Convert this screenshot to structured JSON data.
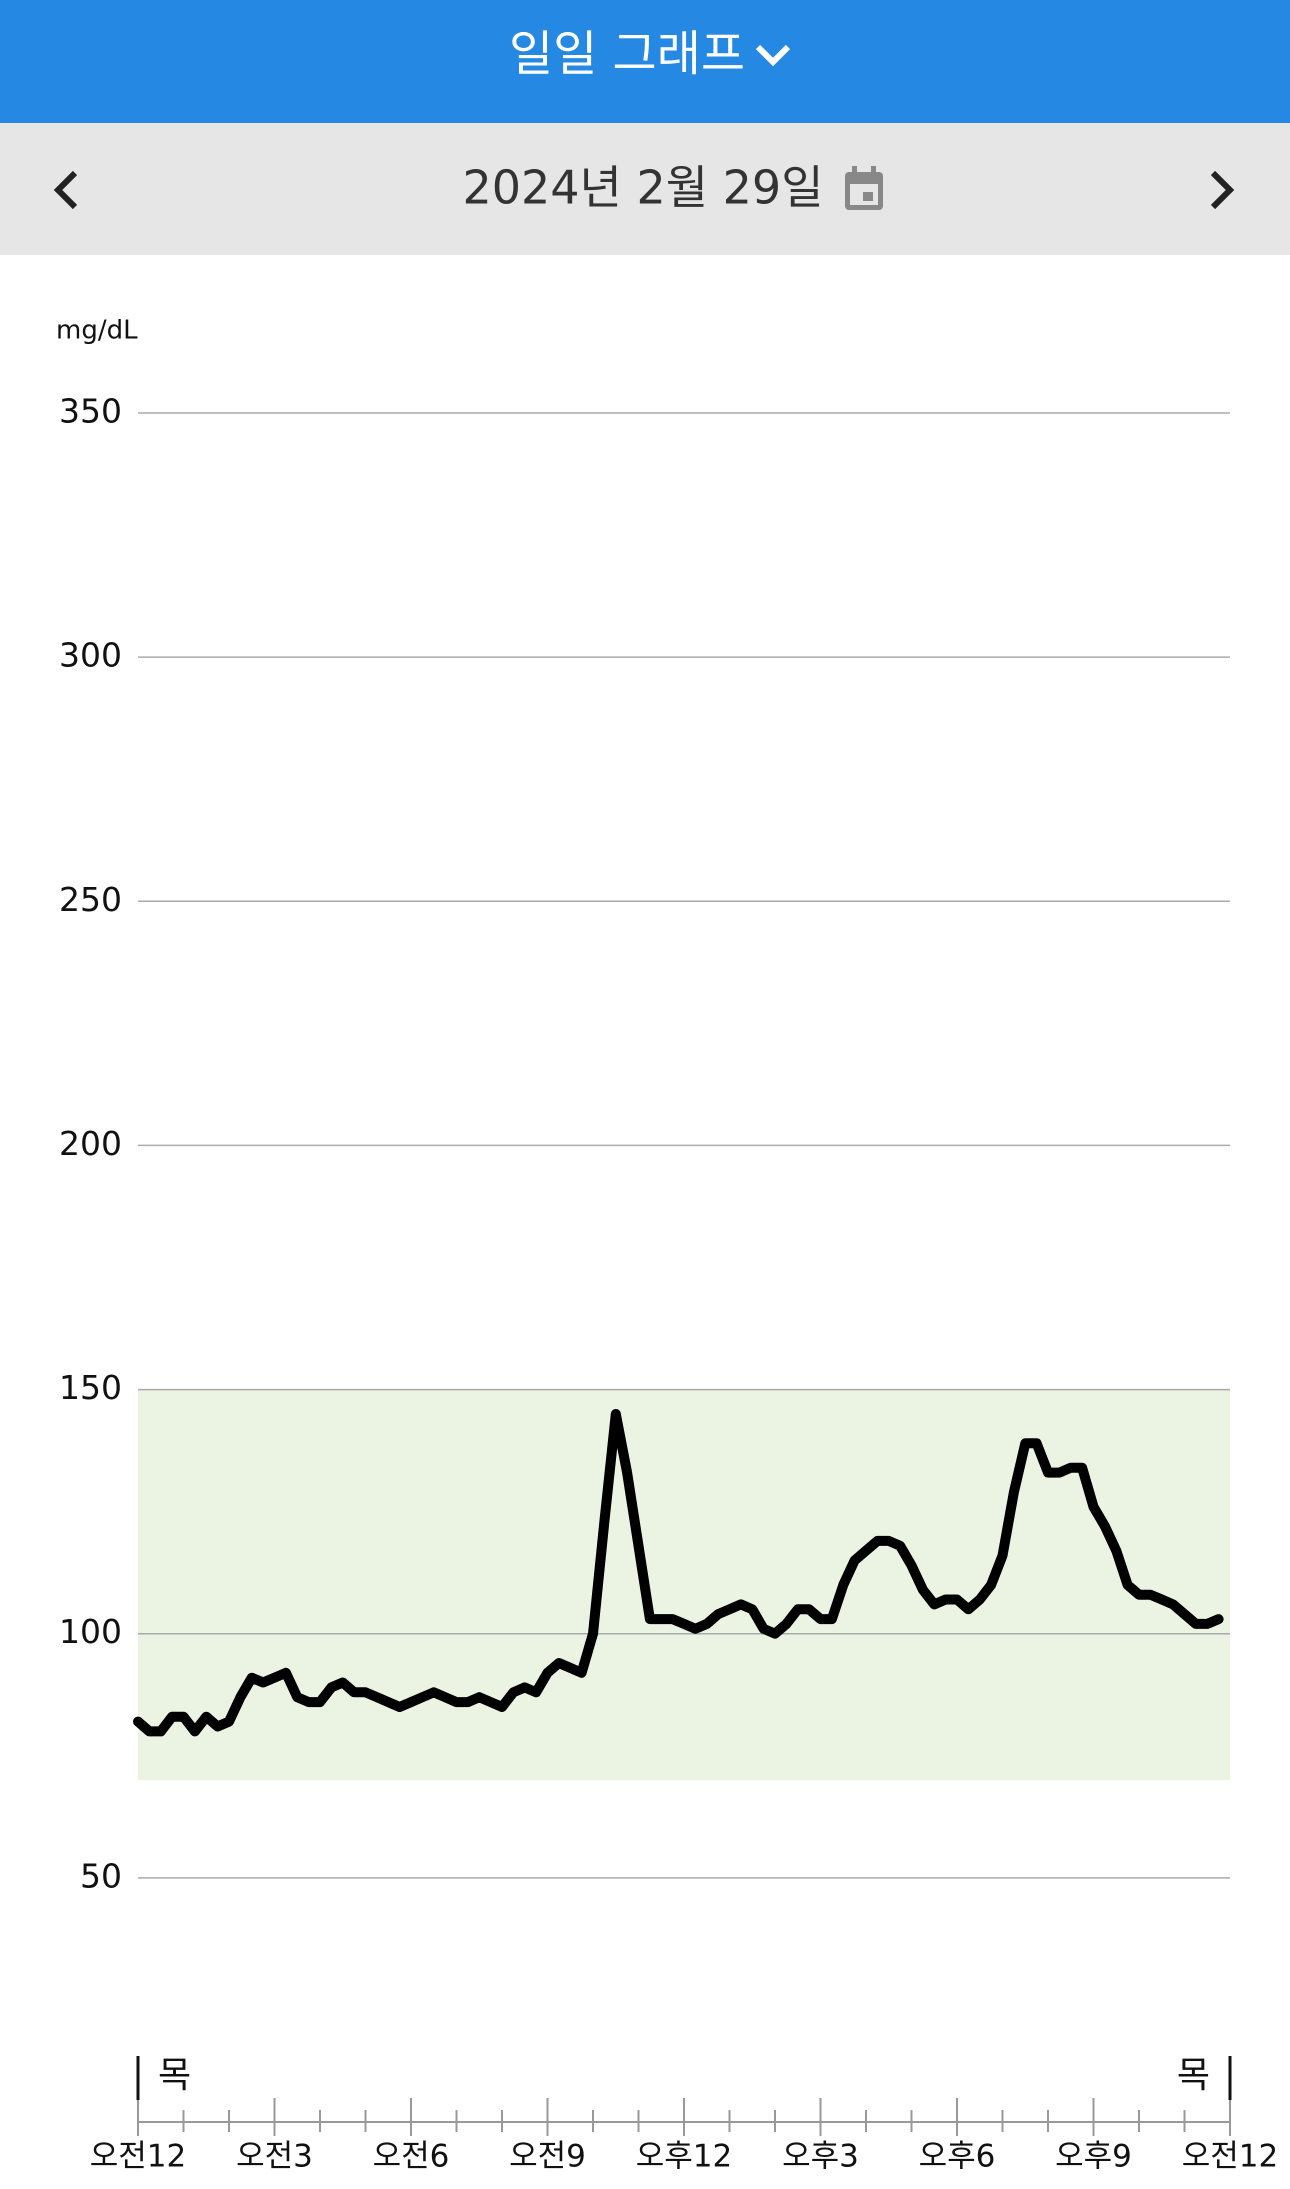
{
  "header": {
    "title": "일일 그래프",
    "date": "2024년 2월 29일"
  },
  "chart_data": {
    "type": "line",
    "y_label": "mg/dL",
    "x": [
      0,
      0.25,
      0.5,
      0.75,
      1,
      1.25,
      1.5,
      1.75,
      2,
      2.25,
      2.5,
      2.75,
      3,
      3.25,
      3.5,
      3.75,
      4,
      4.25,
      4.5,
      4.75,
      5,
      5.25,
      5.5,
      5.75,
      6,
      6.25,
      6.5,
      6.75,
      7,
      7.25,
      7.5,
      7.75,
      8,
      8.25,
      8.5,
      8.75,
      9,
      9.25,
      9.5,
      9.75,
      10,
      10.25,
      10.5,
      10.75,
      11,
      11.25,
      11.5,
      11.75,
      12,
      12.25,
      12.5,
      12.75,
      13,
      13.25,
      13.5,
      13.75,
      14,
      14.25,
      14.5,
      14.75,
      15,
      15.25,
      15.5,
      15.75,
      16,
      16.25,
      16.5,
      16.75,
      17,
      17.25,
      17.5,
      17.75,
      18,
      18.25,
      18.5,
      18.75,
      19,
      19.25,
      19.5,
      19.75,
      20,
      20.25,
      20.5,
      20.75,
      21,
      21.25,
      21.5,
      21.75,
      22,
      22.25,
      22.5,
      22.75,
      23,
      23.25,
      23.5,
      23.75
    ],
    "series": [
      {
        "color": "#000000",
        "values": [
          82,
          80,
          80,
          83,
          83,
          80,
          83,
          81,
          82,
          87,
          91,
          90,
          91,
          92,
          87,
          86,
          86,
          89,
          90,
          88,
          88,
          87,
          86,
          85,
          86,
          87,
          88,
          87,
          86,
          86,
          87,
          86,
          85,
          88,
          89,
          88,
          92,
          94,
          93,
          92,
          100,
          123,
          145,
          133,
          118,
          103,
          103,
          103,
          102,
          101,
          102,
          104,
          105,
          106,
          105,
          101,
          100,
          102,
          105,
          105,
          103,
          103,
          110,
          115,
          117,
          119,
          119,
          118,
          114,
          109,
          106,
          107,
          107,
          105,
          107,
          110,
          116,
          129,
          139,
          139,
          133,
          133,
          134,
          134,
          126,
          122,
          117,
          110,
          108,
          108,
          107,
          106,
          104,
          102,
          102,
          103
        ]
      }
    ],
    "xlim": [
      0,
      24
    ],
    "xticks": [
      {
        "value": 0,
        "label": "오전12"
      },
      {
        "value": 3,
        "label": "오전3"
      },
      {
        "value": 6,
        "label": "오전6"
      },
      {
        "value": 9,
        "label": "오전9"
      },
      {
        "value": 12,
        "label": "오후12"
      },
      {
        "value": 15,
        "label": "오후3"
      },
      {
        "value": 18,
        "label": "오후6"
      },
      {
        "value": 21,
        "label": "오후9"
      },
      {
        "value": 24,
        "label": "오전12"
      }
    ],
    "xticks_minor": [
      0,
      1,
      2,
      3,
      4,
      5,
      6,
      7,
      8,
      9,
      10,
      11,
      12,
      13,
      14,
      15,
      16,
      17,
      18,
      19,
      20,
      21,
      22,
      23,
      24
    ],
    "day_markers": [
      {
        "value": 0,
        "label": "목"
      },
      {
        "value": 24,
        "label": "목"
      }
    ],
    "ylim": [
      0,
      350
    ],
    "yticks": [
      50,
      100,
      150,
      200,
      250,
      300,
      350
    ],
    "grid": true,
    "target_range": [
      70,
      150
    ],
    "target_color": "#ebf4e3"
  }
}
